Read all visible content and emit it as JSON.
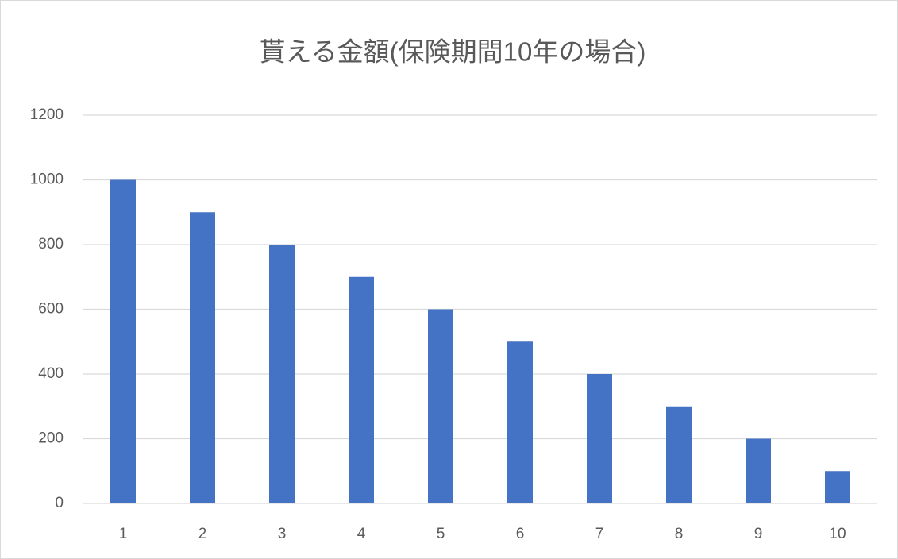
{
  "chart_data": {
    "type": "bar",
    "title": "貰える金額(保険期間10年の場合)",
    "categories": [
      "1",
      "2",
      "3",
      "4",
      "5",
      "6",
      "7",
      "8",
      "9",
      "10"
    ],
    "values": [
      1000,
      900,
      800,
      700,
      600,
      500,
      400,
      300,
      200,
      100
    ],
    "color": "#4472c4",
    "ylim": [
      0,
      1200
    ],
    "yticks": [
      0,
      200,
      400,
      600,
      800,
      1000,
      1200
    ],
    "grid": true
  }
}
